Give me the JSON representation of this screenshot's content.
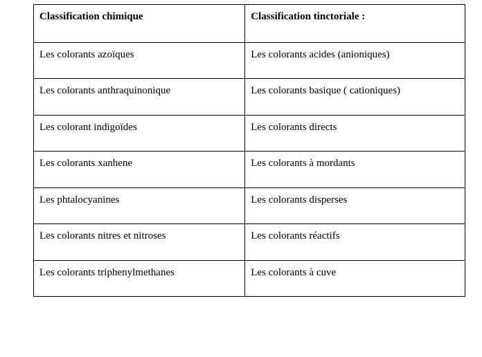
{
  "table": {
    "headers": [
      "Classification chimique",
      "Classification tinctoriale :"
    ],
    "rows": [
      [
        "Les colorants azoïques",
        "Les colorants acides (anioniques)"
      ],
      [
        "Les colorants anthraquinonique",
        "Les colorants basique ( cationiques)"
      ],
      [
        "Les colorant indigoïdes",
        "Les colorants directs"
      ],
      [
        "Les colorants xanhene",
        "Les colorants à mordants"
      ],
      [
        "Les phtalocyanines",
        "Les colorants disperses"
      ],
      [
        "Les colorants nitres et nitroses",
        "Les colorants réactifs"
      ],
      [
        "Les colorants triphenylmethanes",
        "Les colorants à cuve"
      ]
    ],
    "border_color": "#000000",
    "background_color": "#ffffff",
    "font_family": "Times New Roman",
    "header_fontsize_pt": 11,
    "cell_fontsize_pt": 11,
    "header_fontweight": "bold",
    "cell_fontweight": "normal"
  }
}
